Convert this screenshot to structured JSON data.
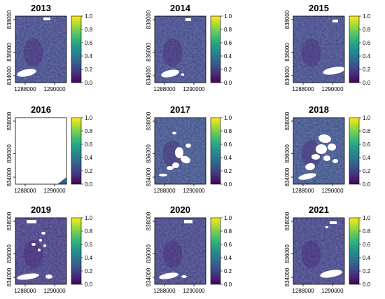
{
  "chart_data": [
    {
      "type": "heatmap",
      "title": "2013",
      "x_ticks": [
        "1288000",
        "1290000"
      ],
      "y_ticks": [
        "834000",
        "836000",
        "838000"
      ],
      "colorbar_ticks": [
        "0.0",
        "0.2",
        "0.4",
        "0.6",
        "0.8",
        "1.0"
      ],
      "clim": [
        0,
        1
      ],
      "typical_value": 0.22,
      "coverage": "full",
      "gaps": "ellipse-bottom-left, small-top"
    },
    {
      "type": "heatmap",
      "title": "2014",
      "x_ticks": [
        "1288000",
        "1290000"
      ],
      "y_ticks": [
        "834000",
        "836000",
        "838000"
      ],
      "colorbar_ticks": [
        "0.0",
        "0.2",
        "0.4",
        "0.6",
        "0.8",
        "1.0"
      ],
      "clim": [
        0,
        1
      ],
      "typical_value": 0.22,
      "coverage": "full",
      "gaps": "ellipse-bottom-left, small-top"
    },
    {
      "type": "heatmap",
      "title": "2015",
      "x_ticks": [
        "1288000",
        "1290000"
      ],
      "y_ticks": [
        "834000",
        "836000",
        "838000"
      ],
      "colorbar_ticks": [
        "0.0",
        "0.2",
        "0.4",
        "0.6",
        "0.8",
        "1.0"
      ],
      "clim": [
        0,
        1
      ],
      "typical_value": 0.22,
      "coverage": "full",
      "gaps": "ellipse-bottom-right, small-top-right"
    },
    {
      "type": "heatmap",
      "title": "2016",
      "x_ticks": [
        "1288000",
        "1290000"
      ],
      "y_ticks": [
        "834000",
        "836000",
        "838000"
      ],
      "colorbar_ticks": [
        "0.0",
        "0.2",
        "0.4",
        "0.6",
        "0.8",
        "1.0"
      ],
      "clim": [
        0,
        1
      ],
      "typical_value": 0.3,
      "coverage": "mostly-empty",
      "gaps": "nearly all missing"
    },
    {
      "type": "heatmap",
      "title": "2017",
      "x_ticks": [
        "1288000",
        "1290000"
      ],
      "y_ticks": [
        "834000",
        "836000",
        "838000"
      ],
      "colorbar_ticks": [
        "0.0",
        "0.2",
        "0.4",
        "0.6",
        "0.8",
        "1.0"
      ],
      "clim": [
        0,
        1
      ],
      "typical_value": 0.25,
      "coverage": "full",
      "gaps": "scattered-center, ellipse-bottom"
    },
    {
      "type": "heatmap",
      "title": "2018",
      "x_ticks": [
        "1288000",
        "1290000"
      ],
      "y_ticks": [
        "834000",
        "836000",
        "838000"
      ],
      "colorbar_ticks": [
        "0.0",
        "0.2",
        "0.4",
        "0.6",
        "0.8",
        "1.0"
      ],
      "clim": [
        0,
        1
      ],
      "typical_value": 0.25,
      "coverage": "full",
      "gaps": "many-center, ellipse-bottom"
    },
    {
      "type": "heatmap",
      "title": "2019",
      "x_ticks": [
        "1288000",
        "1290000"
      ],
      "y_ticks": [
        "834000",
        "836000",
        "838000"
      ],
      "colorbar_ticks": [
        "0.0",
        "0.2",
        "0.4",
        "0.6",
        "0.8",
        "1.0"
      ],
      "clim": [
        0,
        1
      ],
      "typical_value": 0.18,
      "coverage": "full",
      "gaps": "small-scattered, ellipse-bottom-left"
    },
    {
      "type": "heatmap",
      "title": "2020",
      "x_ticks": [
        "1288000",
        "1290000"
      ],
      "y_ticks": [
        "834000",
        "836000",
        "838000"
      ],
      "colorbar_ticks": [
        "0.0",
        "0.2",
        "0.4",
        "0.6",
        "0.8",
        "1.0"
      ],
      "clim": [
        0,
        1
      ],
      "typical_value": 0.2,
      "coverage": "full",
      "gaps": "ellipse-bottom-left, small-top"
    },
    {
      "type": "heatmap",
      "title": "2021",
      "x_ticks": [
        "1288000",
        "1290000"
      ],
      "y_ticks": [
        "834000",
        "836000",
        "838000"
      ],
      "colorbar_ticks": [
        "0.0",
        "0.2",
        "0.4",
        "0.6",
        "0.8",
        "1.0"
      ],
      "clim": [
        0,
        1
      ],
      "typical_value": 0.2,
      "coverage": "full",
      "gaps": "ellipse-bottom-right, small-top-right"
    }
  ],
  "colormap": "viridis",
  "colors": {
    "background": "#ffffff",
    "axis": "#000000",
    "gap": "#ffffff"
  }
}
